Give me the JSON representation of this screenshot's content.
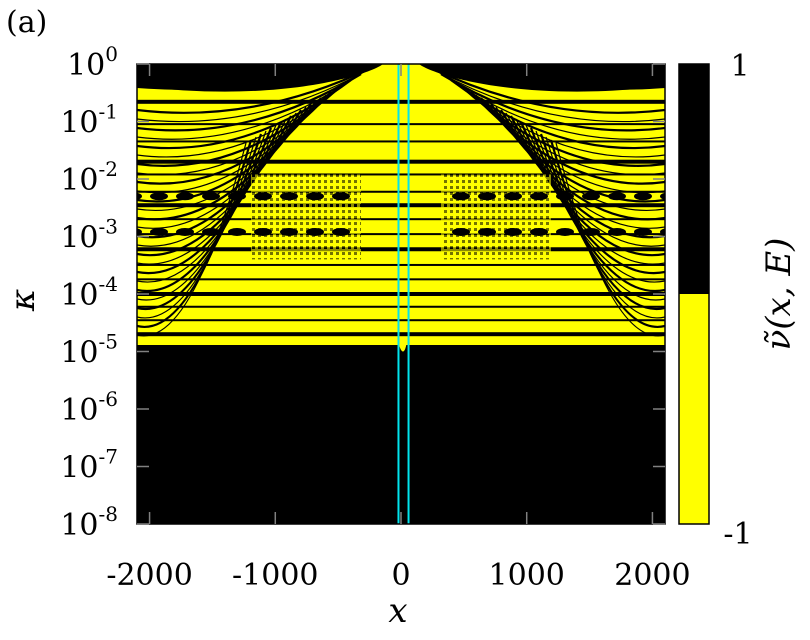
{
  "chart_data": {
    "type": "heatmap",
    "panel_label": "(a)",
    "xlabel": "x",
    "ylabel": "κ",
    "colorbar_label": "ν̃(x, E)",
    "x_ticks": [
      "-2000",
      "-1000",
      "0",
      "1000",
      "2000"
    ],
    "x_tick_values": [
      -2000,
      -1000,
      0,
      1000,
      2000
    ],
    "xlim": [
      -2100,
      2100
    ],
    "y_scale": "log",
    "y_ticks": [
      {
        "base": "10",
        "exp": "0",
        "value": 1
      },
      {
        "base": "10",
        "exp": "-1",
        "value": 0.1
      },
      {
        "base": "10",
        "exp": "-2",
        "value": 0.01
      },
      {
        "base": "10",
        "exp": "-3",
        "value": 0.001
      },
      {
        "base": "10",
        "exp": "-4",
        "value": 0.0001
      },
      {
        "base": "10",
        "exp": "-5",
        "value": 1e-05
      },
      {
        "base": "10",
        "exp": "-6",
        "value": 1e-06
      },
      {
        "base": "10",
        "exp": "-7",
        "value": 1e-07
      },
      {
        "base": "10",
        "exp": "-8",
        "value": 1e-08
      }
    ],
    "ylim": [
      1e-08,
      1
    ],
    "colorbar": {
      "levels": [
        {
          "value": 1,
          "label": "1",
          "color": "#000000"
        },
        {
          "value": -1,
          "label": "-1",
          "color": "#ffff00"
        }
      ]
    },
    "regions": {
      "yellow_lower_boundary_kappa": 1.3e-05,
      "central_spike_min_kappa": 1e-05,
      "outer_black_cap_kappa": 0.3
    },
    "vertical_lines": {
      "x": [
        -20,
        60
      ],
      "color": "#00e5ee"
    }
  }
}
